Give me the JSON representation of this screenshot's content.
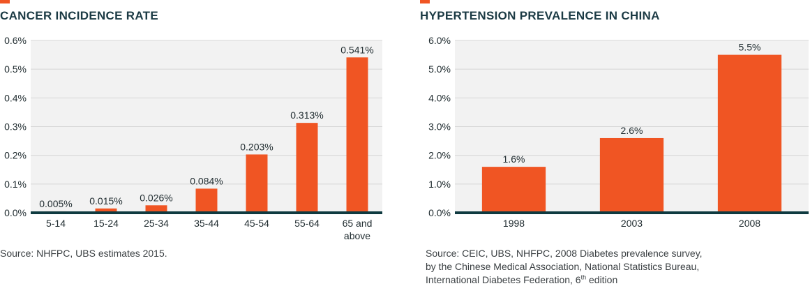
{
  "colors": {
    "bar": "#f05523",
    "plot_bg": "#f2f2f2",
    "grid": "#d6d6d6",
    "baseline": "#0f3a40",
    "text": "#1e2a2e"
  },
  "chart_data": [
    {
      "type": "bar",
      "title": "CANCER INCIDENCE RATE",
      "categories": [
        "5-14",
        "15-24",
        "25-34",
        "35-44",
        "45-54",
        "55-64",
        "65 and above"
      ],
      "values": [
        0.005,
        0.015,
        0.026,
        0.084,
        0.203,
        0.313,
        0.541
      ],
      "data_labels": [
        "0.005%",
        "0.015%",
        "0.026%",
        "0.084%",
        "0.203%",
        "0.313%",
        "0.541%"
      ],
      "yticks": [
        "0.0%",
        "0.1%",
        "0.2%",
        "0.3%",
        "0.4%",
        "0.5%",
        "0.6%"
      ],
      "ylim": [
        0,
        0.6
      ],
      "grid": true,
      "source": "Source: NHFPC, UBS estimates 2015."
    },
    {
      "type": "bar",
      "title": "HYPERTENSION PREVALENCE IN CHINA",
      "categories": [
        "1998",
        "2003",
        "2008"
      ],
      "values": [
        1.6,
        2.6,
        5.5
      ],
      "data_labels": [
        "1.6%",
        "2.6%",
        "5.5%"
      ],
      "yticks": [
        "0.0%",
        "1.0%",
        "2.0%",
        "3.0%",
        "4.0%",
        "5.0%",
        "6.0%"
      ],
      "ylim": [
        0,
        6.0
      ],
      "grid": true,
      "source_lines": [
        "Source: CEIC, UBS, NHFPC, 2008 Diabetes prevalence survey,",
        "by the Chinese Medical Association, National Statistics Bureau,",
        "International Diabetes Federation, 6"
      ],
      "source_sup": "th",
      "source_tail": " edition"
    }
  ]
}
